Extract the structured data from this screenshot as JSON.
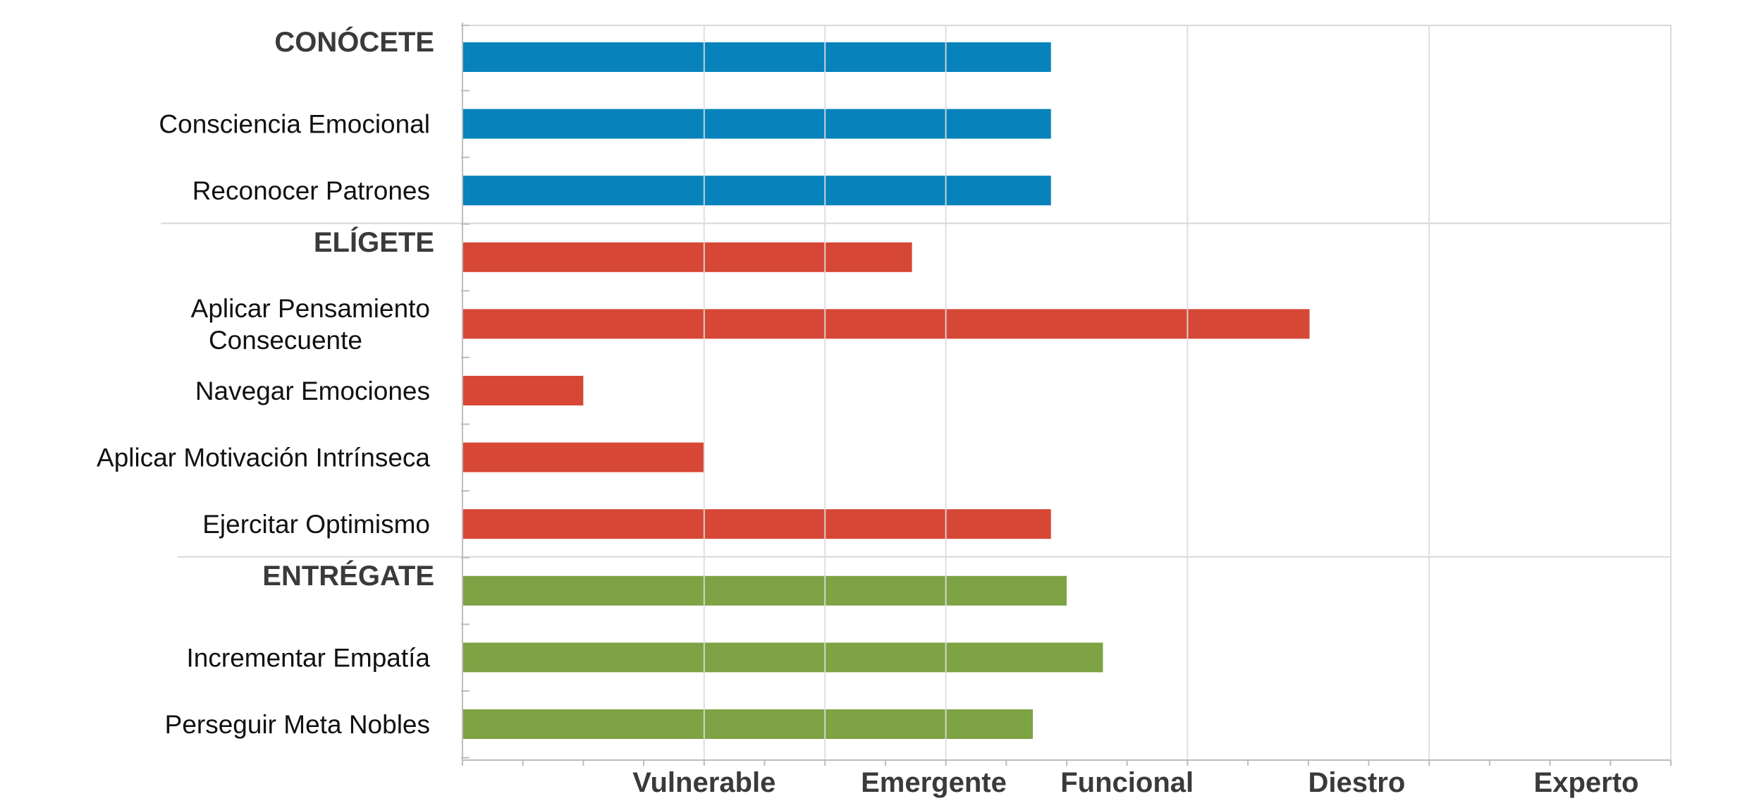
{
  "chart_data": {
    "type": "bar",
    "orientation": "horizontal",
    "title": "",
    "xlabel": "",
    "ylabel": "",
    "x_tick_labels": [
      "Vulnerable",
      "Emergente",
      "Funcional",
      "Diestro",
      "Experto"
    ],
    "xlim": [
      0,
      10
    ],
    "grid": true,
    "groups": [
      {
        "name": "CONÓCETE",
        "color": "#0782BB",
        "items": [
          {
            "label": "CONÓCETE",
            "value": 4.87,
            "is_header": true
          },
          {
            "label": "Consciencia Emocional",
            "value": 4.87
          },
          {
            "label": "Reconocer Patrones",
            "value": 4.87
          }
        ]
      },
      {
        "name": "ELÍGETE",
        "color": "#D64735",
        "items": [
          {
            "label": "ELÍGETE",
            "value": 3.72,
            "is_header": true
          },
          {
            "label": "Aplicar Pensamiento\nConsecuente",
            "value": 7.01
          },
          {
            "label": "Navegar Emociones",
            "value": 1.0
          },
          {
            "label": "Aplicar Motivación Intrínseca",
            "value": 2.0
          },
          {
            "label": "Ejercitar Optimismo",
            "value": 4.87
          }
        ]
      },
      {
        "name": "ENTRÉGATE",
        "color": "#7DA344",
        "items": [
          {
            "label": "ENTRÉGATE",
            "value": 5.0,
            "is_header": true
          },
          {
            "label": "Incrementar Empatía",
            "value": 5.3
          },
          {
            "label": "Perseguir Meta Nobles",
            "value": 4.72
          }
        ]
      }
    ]
  }
}
